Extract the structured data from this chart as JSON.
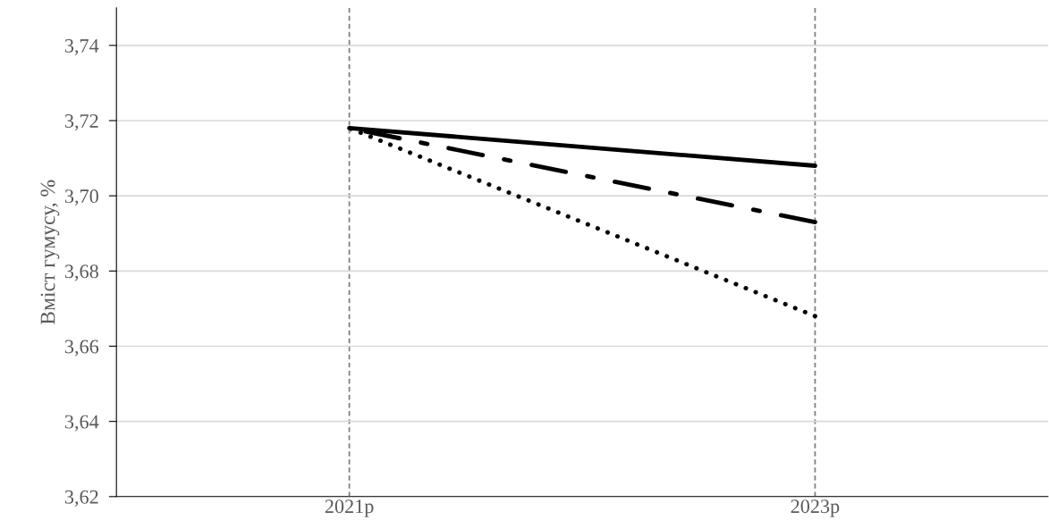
{
  "chart_data": {
    "type": "line",
    "ylabel": "Вміст гумусу, %",
    "categories": [
      "2021р",
      "2023р"
    ],
    "series": [
      {
        "color": "#000000",
        "line_style": "solid",
        "values": [
          3.718,
          3.708
        ]
      },
      {
        "color": "#000000",
        "line_style": "dashdot",
        "values": [
          3.718,
          3.693
        ]
      },
      {
        "color": "#000000",
        "line_style": "dotted",
        "values": [
          3.718,
          3.668
        ]
      }
    ],
    "ylim": [
      3.62,
      3.75
    ],
    "yticks": [
      {
        "value": 3.62,
        "label": "3,62"
      },
      {
        "value": 3.64,
        "label": "3,64"
      },
      {
        "value": 3.66,
        "label": "3,66"
      },
      {
        "value": 3.68,
        "label": "3,68"
      },
      {
        "value": 3.7,
        "label": "3,70"
      },
      {
        "value": 3.72,
        "label": "3,72"
      },
      {
        "value": 3.74,
        "label": "3,74"
      }
    ],
    "grid": true,
    "marker": "none"
  }
}
